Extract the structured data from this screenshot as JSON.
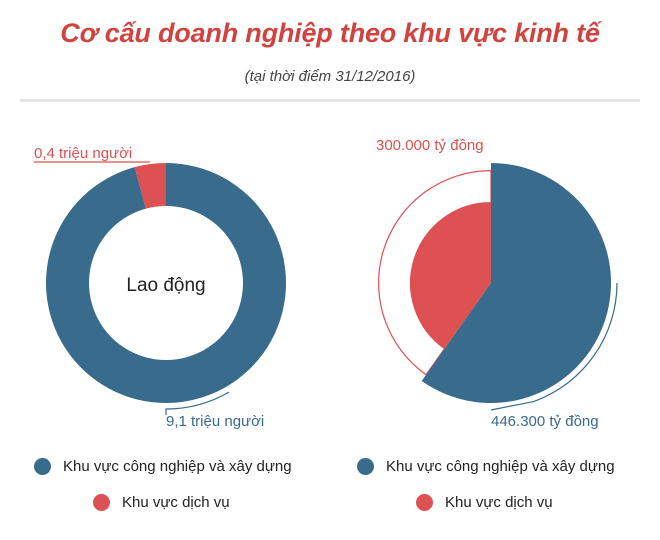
{
  "header": {
    "title": "Cơ cấu doanh nghiệp theo khu vực kinh tế",
    "subtitle": "(tại thời điểm 31/12/2016)"
  },
  "colors": {
    "industry": "#386b8c",
    "service": "#de5152",
    "title": "#d2433f"
  },
  "chart_data": [
    {
      "type": "pie",
      "variant": "donut",
      "center_label": "Lao động",
      "slices": [
        {
          "category": "Khu vực công nghiệp và xây dựng",
          "value": 9.1,
          "label": "9,1 triệu người"
        },
        {
          "category": "Khu vực dịch vụ",
          "value": 0.4,
          "label": "0,4 triệu người"
        }
      ],
      "legend": {
        "placement": "bottom",
        "entries": [
          "Khu vực công nghiệp và xây dựng",
          "Khu vực dịch vụ"
        ]
      }
    },
    {
      "type": "pie",
      "variant": "rose",
      "slices": [
        {
          "category": "Khu vực công nghiệp và xây dựng",
          "value": 446300,
          "label": "446.300 tỷ đồng"
        },
        {
          "category": "Khu vực dịch vụ",
          "value": 300000,
          "label": "300.000 tỷ đồng"
        }
      ],
      "legend": {
        "placement": "bottom",
        "entries": [
          "Khu vực công nghiệp và xây dựng",
          "Khu vực dịch vụ"
        ]
      }
    }
  ]
}
